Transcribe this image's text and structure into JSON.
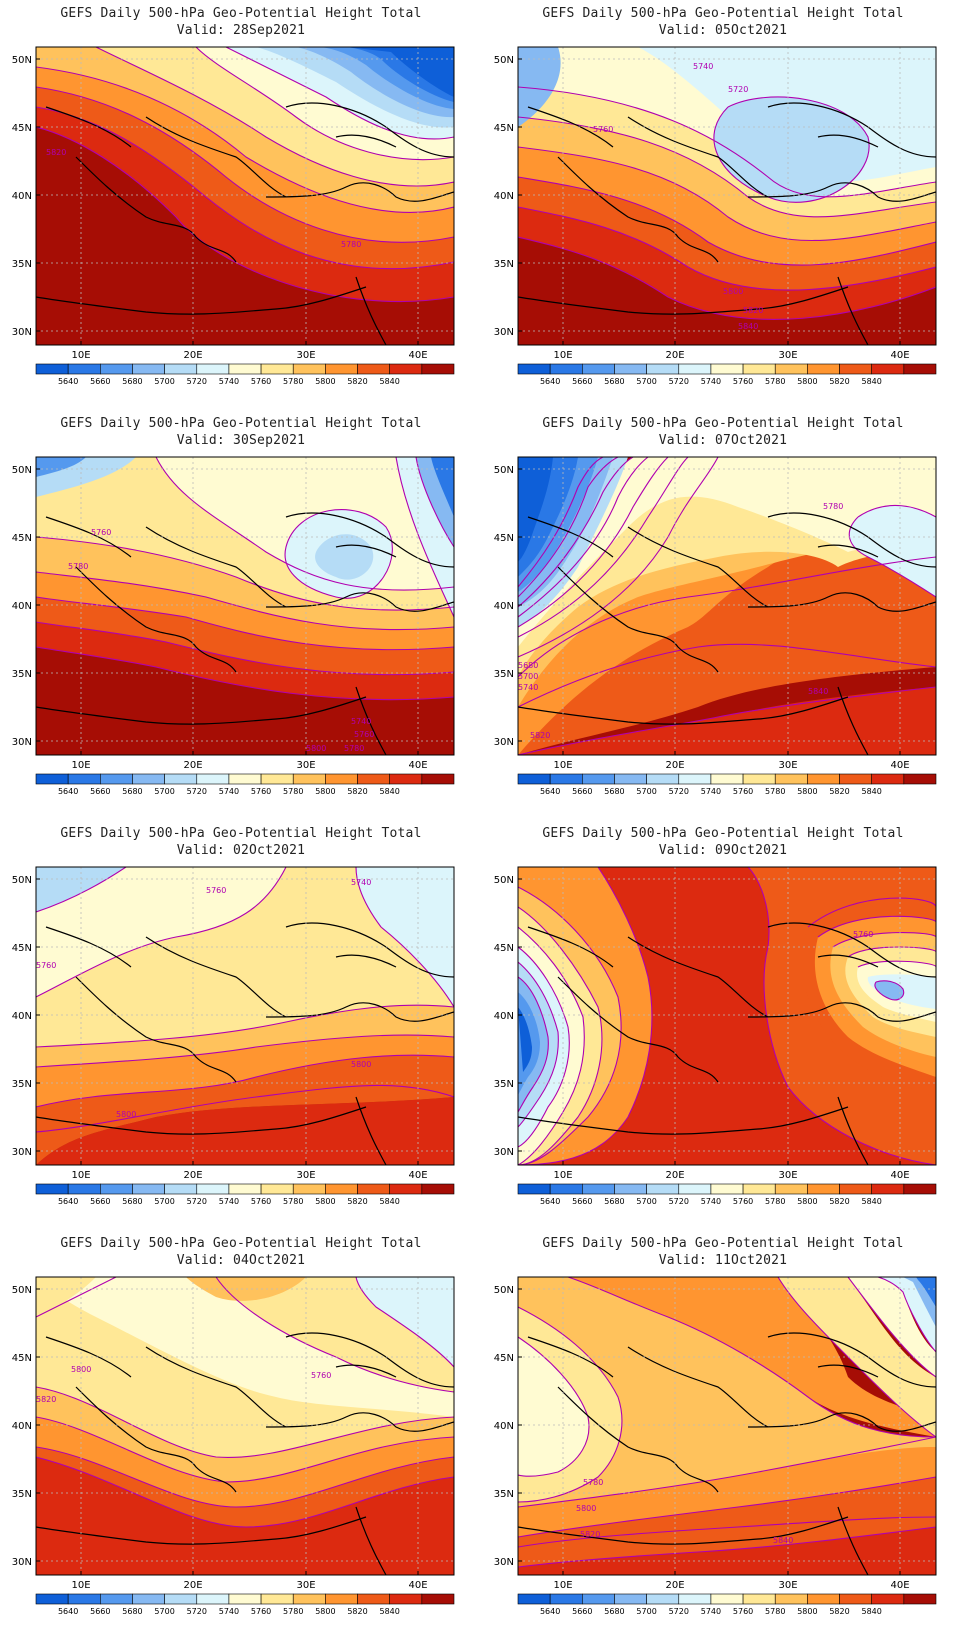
{
  "palette": {
    "colors": [
      "#0e5fd8",
      "#2a78e6",
      "#5599ee",
      "#86b9f2",
      "#b5dcf6",
      "#dcf5fb",
      "#fffbd2",
      "#ffe896",
      "#ffc25c",
      "#ff9530",
      "#ee5a18",
      "#dc2a10",
      "#a60d05"
    ],
    "contour_color": "#b000b0"
  },
  "colorbar": {
    "labels": [
      "5640",
      "5660",
      "5680",
      "5700",
      "5720",
      "5740",
      "5760",
      "5780",
      "5800",
      "5820",
      "5840"
    ]
  },
  "axes": {
    "lon_labels": [
      "10E",
      "20E",
      "30E",
      "40E"
    ],
    "lat_labels": [
      "50N",
      "45N",
      "40N",
      "35N",
      "30N"
    ]
  },
  "panels": [
    {
      "title": "GEFS Daily 500-hPa Geo-Potential Height Total",
      "valid": "Valid: 28Sep2021",
      "contour_labels": [
        {
          "text": "5820"
        },
        {
          "text": "5780"
        }
      ]
    },
    {
      "title": "GEFS Daily 500-hPa Geo-Potential Height Total",
      "valid": "Valid: 05Oct2021",
      "contour_labels": [
        {
          "text": "5740"
        },
        {
          "text": "5720"
        },
        {
          "text": "5760"
        },
        {
          "text": "5800"
        },
        {
          "text": "5820"
        },
        {
          "text": "5840"
        }
      ]
    },
    {
      "title": "GEFS Daily 500-hPa Geo-Potential Height Total",
      "valid": "Valid: 30Sep2021",
      "contour_labels": [
        {
          "text": "5760"
        },
        {
          "text": "5780"
        },
        {
          "text": "5740"
        },
        {
          "text": "5760"
        },
        {
          "text": "5780"
        },
        {
          "text": "5800"
        }
      ]
    },
    {
      "title": "GEFS Daily 500-hPa Geo-Potential Height Total",
      "valid": "Valid: 07Oct2021",
      "contour_labels": [
        {
          "text": "5780"
        },
        {
          "text": "5680"
        },
        {
          "text": "5700"
        },
        {
          "text": "5740"
        },
        {
          "text": "5820"
        },
        {
          "text": "5840"
        }
      ]
    },
    {
      "title": "GEFS Daily 500-hPa Geo-Potential Height Total",
      "valid": "Valid: 02Oct2021",
      "contour_labels": [
        {
          "text": "5760"
        },
        {
          "text": "5740"
        },
        {
          "text": "5760"
        },
        {
          "text": "5800"
        },
        {
          "text": "5800"
        }
      ]
    },
    {
      "title": "GEFS Daily 500-hPa Geo-Potential Height Total",
      "valid": "Valid: 09Oct2021",
      "contour_labels": [
        {
          "text": "5760"
        }
      ]
    },
    {
      "title": "GEFS Daily 500-hPa Geo-Potential Height Total",
      "valid": "Valid: 04Oct2021",
      "contour_labels": [
        {
          "text": "5800"
        },
        {
          "text": "5760"
        },
        {
          "text": "5820"
        }
      ]
    },
    {
      "title": "GEFS Daily 500-hPa Geo-Potential Height Total",
      "valid": "Valid: 11Oct2021",
      "contour_labels": [
        {
          "text": "5780"
        },
        {
          "text": "5800"
        },
        {
          "text": "5820"
        },
        {
          "text": "5840"
        }
      ]
    }
  ]
}
